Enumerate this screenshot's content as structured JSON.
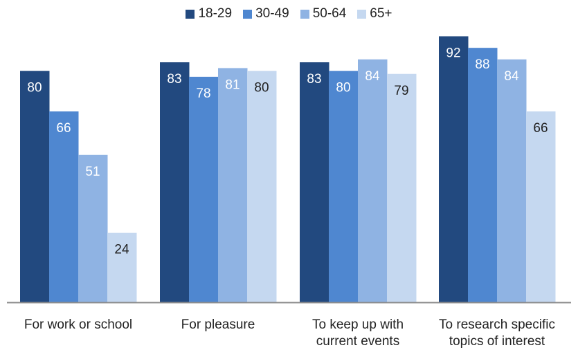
{
  "chart_data": {
    "type": "bar",
    "categories": [
      "For work or school",
      "For pleasure",
      "To keep up with\ncurrent events",
      "To research specific\ntopics of interest"
    ],
    "series": [
      {
        "name": "18-29",
        "color": "#22497f",
        "label_color": "#ffffff",
        "values": [
          80,
          83,
          83,
          92
        ]
      },
      {
        "name": "30-49",
        "color": "#4f87d0",
        "label_color": "#ffffff",
        "values": [
          66,
          78,
          80,
          88
        ]
      },
      {
        "name": "50-64",
        "color": "#8fb3e3",
        "label_color": "#ffffff",
        "values": [
          51,
          81,
          84,
          84
        ]
      },
      {
        "name": "65+",
        "color": "#c5d8f0",
        "label_color": "#222222",
        "values": [
          24,
          80,
          79,
          66
        ]
      }
    ],
    "ylim": [
      0,
      100
    ],
    "grid": false,
    "legend": "top-center"
  }
}
